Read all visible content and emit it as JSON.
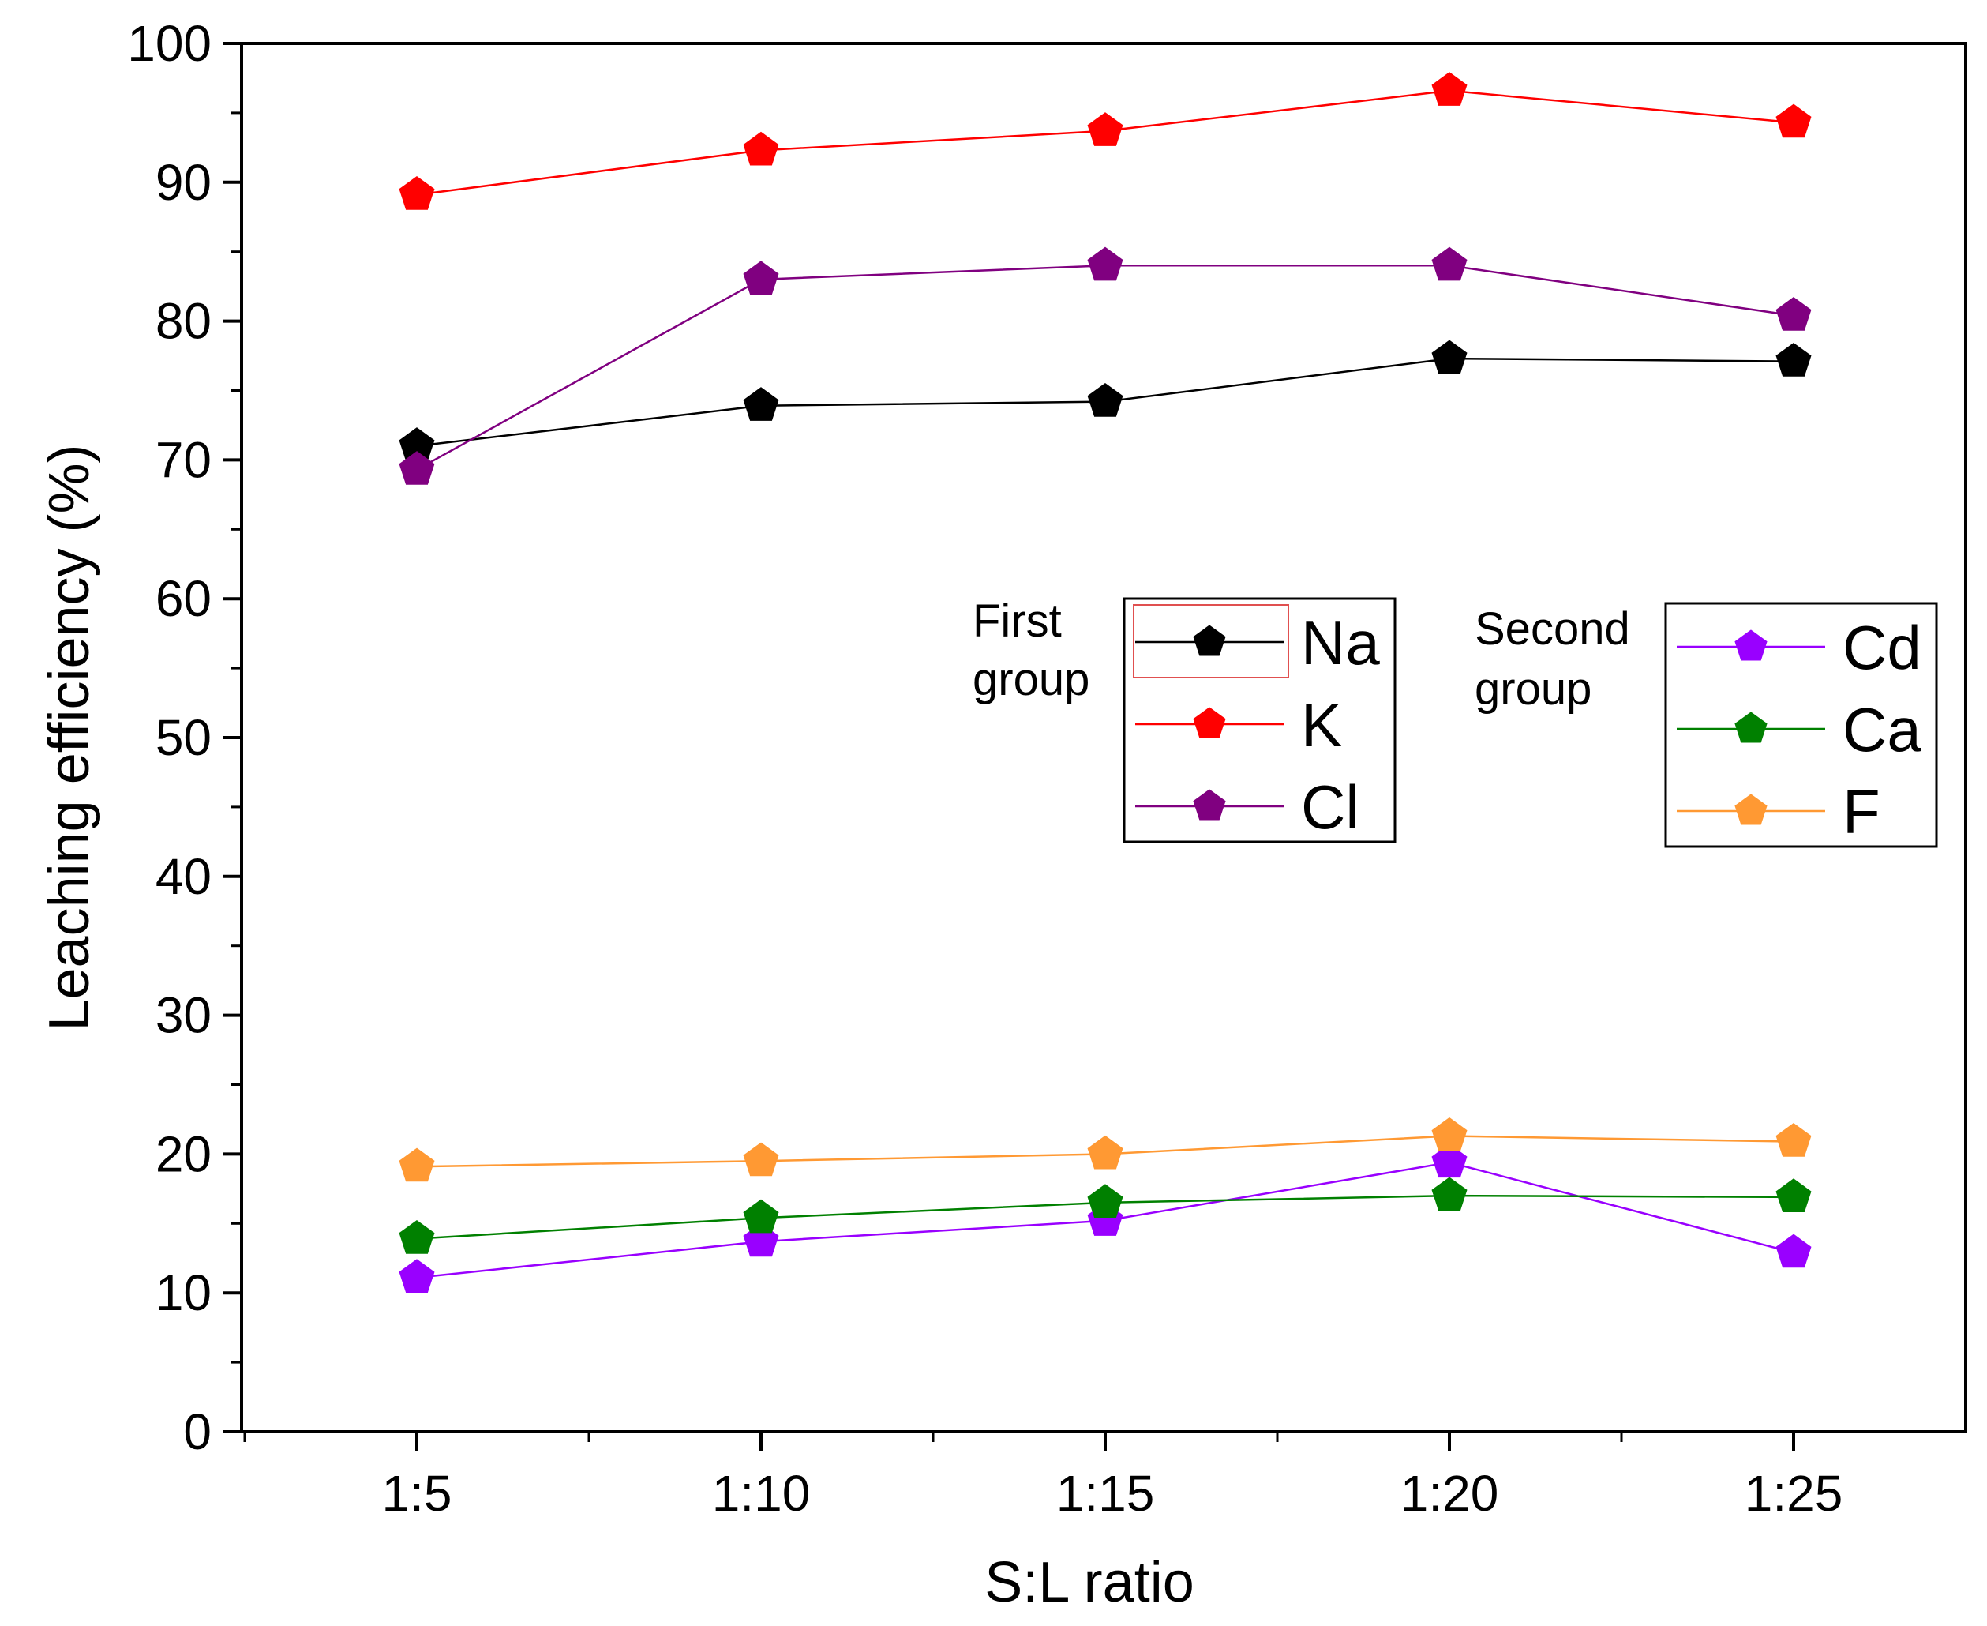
{
  "chart_data": {
    "type": "line",
    "title": "",
    "xlabel": "S:L ratio",
    "ylabel": "Leaching efficiency (%)",
    "categories": [
      "1:5",
      "1:10",
      "1:15",
      "1:20",
      "1:25"
    ],
    "ylim": [
      0,
      100
    ],
    "yticks": [
      "0",
      "10",
      "20",
      "30",
      "40",
      "50",
      "60",
      "70",
      "80",
      "90",
      "100"
    ],
    "groups": [
      {
        "label_line1": "First",
        "label_line2": "group",
        "series_names": [
          "Na",
          "K",
          "Cl"
        ]
      },
      {
        "label_line1": "Second",
        "label_line2": "group",
        "series_names": [
          "Cd",
          "Ca",
          "F"
        ]
      }
    ],
    "series": [
      {
        "name": "Na",
        "color": "#000000",
        "values": [
          71.0,
          73.9,
          74.2,
          77.3,
          77.1
        ]
      },
      {
        "name": "K",
        "color": "#ff0000",
        "values": [
          89.1,
          92.3,
          93.7,
          96.6,
          94.3
        ]
      },
      {
        "name": "Cl",
        "color": "#800080",
        "values": [
          69.3,
          83.0,
          84.0,
          84.0,
          80.4
        ]
      },
      {
        "name": "Cd",
        "color": "#9900ff",
        "values": [
          11.1,
          13.7,
          15.2,
          19.4,
          12.9
        ]
      },
      {
        "name": "Ca",
        "color": "#008000",
        "values": [
          13.9,
          15.4,
          16.5,
          17.0,
          16.9
        ]
      },
      {
        "name": "F",
        "color": "#ff9933",
        "values": [
          19.1,
          19.5,
          20.0,
          21.3,
          20.9
        ]
      }
    ]
  }
}
